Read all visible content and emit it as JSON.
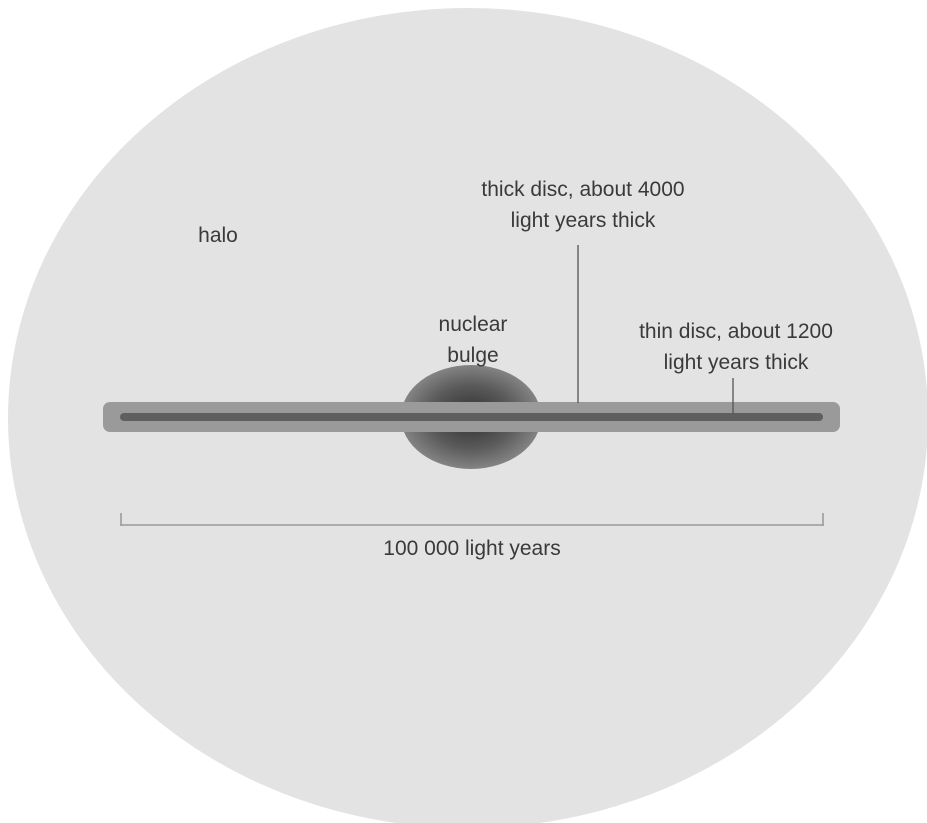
{
  "labels": {
    "halo": "halo",
    "nuclear_bulge": [
      "nuclear",
      "bulge"
    ],
    "thick_disc": [
      "thick disc, about 4000",
      "light years thick"
    ],
    "thin_disc": [
      "thin disc, about 1200",
      "light years thick"
    ],
    "scale": "100 000 light years"
  },
  "colors": {
    "halo": "#e3e3e3",
    "thick_disc": "#9a9a9a",
    "thin_disc": "#5f5f5f",
    "bulge_core": "#3c3c3c",
    "bulge_edge": "#8a8a8a",
    "line": "#555555",
    "scale_line": "#8c8c8c",
    "text": "#3a3a3a"
  }
}
